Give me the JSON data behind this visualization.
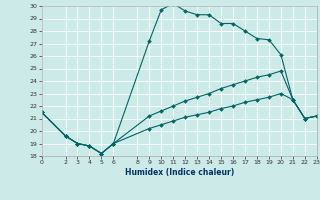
{
  "xlabel": "Humidex (Indice chaleur)",
  "background_color": "#cceae7",
  "grid_color": "#ffffff",
  "line_color": "#006666",
  "xlim": [
    0,
    23
  ],
  "ylim": [
    18,
    30
  ],
  "xticks": [
    0,
    2,
    3,
    4,
    5,
    6,
    8,
    9,
    10,
    11,
    12,
    13,
    14,
    15,
    16,
    17,
    18,
    19,
    20,
    21,
    22,
    23
  ],
  "yticks": [
    18,
    19,
    20,
    21,
    22,
    23,
    24,
    25,
    26,
    27,
    28,
    29,
    30
  ],
  "series1_x": [
    0,
    2,
    3,
    4,
    5,
    6,
    9,
    10,
    11,
    12,
    13,
    14,
    15,
    16,
    17,
    18,
    19,
    20,
    21,
    22,
    23
  ],
  "series1_y": [
    21.5,
    19.6,
    19.0,
    18.8,
    18.2,
    19.0,
    27.2,
    29.7,
    30.2,
    29.6,
    29.3,
    29.3,
    28.6,
    28.6,
    28.0,
    27.4,
    27.3,
    26.1,
    22.5,
    21.0,
    21.2
  ],
  "series2_x": [
    0,
    2,
    3,
    4,
    5,
    6,
    9,
    10,
    11,
    12,
    13,
    14,
    15,
    16,
    17,
    18,
    19,
    20,
    21,
    22,
    23
  ],
  "series2_y": [
    21.5,
    19.6,
    19.0,
    18.8,
    18.2,
    19.0,
    21.2,
    21.6,
    22.0,
    22.4,
    22.7,
    23.0,
    23.4,
    23.7,
    24.0,
    24.3,
    24.5,
    24.8,
    22.5,
    21.0,
    21.2
  ],
  "series3_x": [
    0,
    2,
    3,
    4,
    5,
    6,
    9,
    10,
    11,
    12,
    13,
    14,
    15,
    16,
    17,
    18,
    19,
    20,
    21,
    22,
    23
  ],
  "series3_y": [
    21.5,
    19.6,
    19.0,
    18.8,
    18.2,
    19.0,
    20.2,
    20.5,
    20.8,
    21.1,
    21.3,
    21.5,
    21.8,
    22.0,
    22.3,
    22.5,
    22.7,
    23.0,
    22.5,
    21.0,
    21.2
  ]
}
